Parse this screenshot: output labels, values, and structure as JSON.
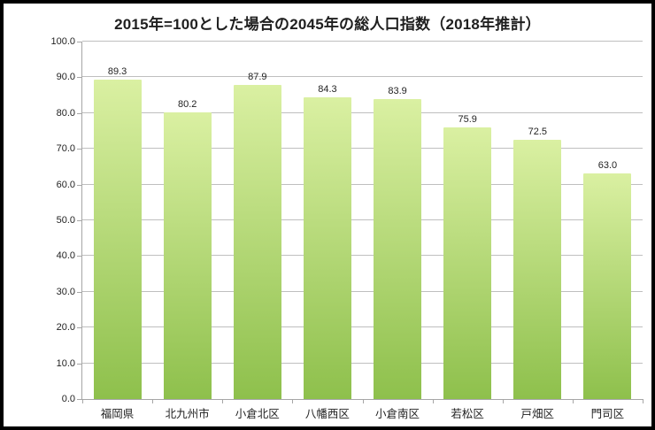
{
  "title": "2015年=100とした場合の2045年の総人口指数（2018年推計）",
  "chart_data": {
    "type": "bar",
    "title": "2015年=100とした場合の2045年の総人口指数（2018年推計）",
    "categories": [
      "福岡県",
      "北九州市",
      "小倉北区",
      "八幡西区",
      "小倉南区",
      "若松区",
      "戸畑区",
      "門司区"
    ],
    "values": [
      89.3,
      80.2,
      87.9,
      84.3,
      83.9,
      75.9,
      72.5,
      63.0
    ],
    "data_labels": [
      "89.3",
      "80.2",
      "87.9",
      "84.3",
      "83.9",
      "75.9",
      "72.5",
      "63.0"
    ],
    "xlabel": "",
    "ylabel": "",
    "ylim": [
      0,
      100
    ],
    "ytick_step": 10,
    "yticks": [
      "0.0",
      "10.0",
      "20.0",
      "30.0",
      "40.0",
      "50.0",
      "60.0",
      "70.0",
      "80.0",
      "90.0",
      "100.0"
    ],
    "grid": "horizontal",
    "legend": "none",
    "colors": {
      "bar_gradient_top": "#daf0a2",
      "bar_gradient_bottom": "#8ec04c",
      "gridline": "#bfbfbf",
      "axis_line": "#a6a6a6",
      "text": "#1f1f1f",
      "frame_border": "#000000",
      "background": "#ffffff"
    }
  }
}
